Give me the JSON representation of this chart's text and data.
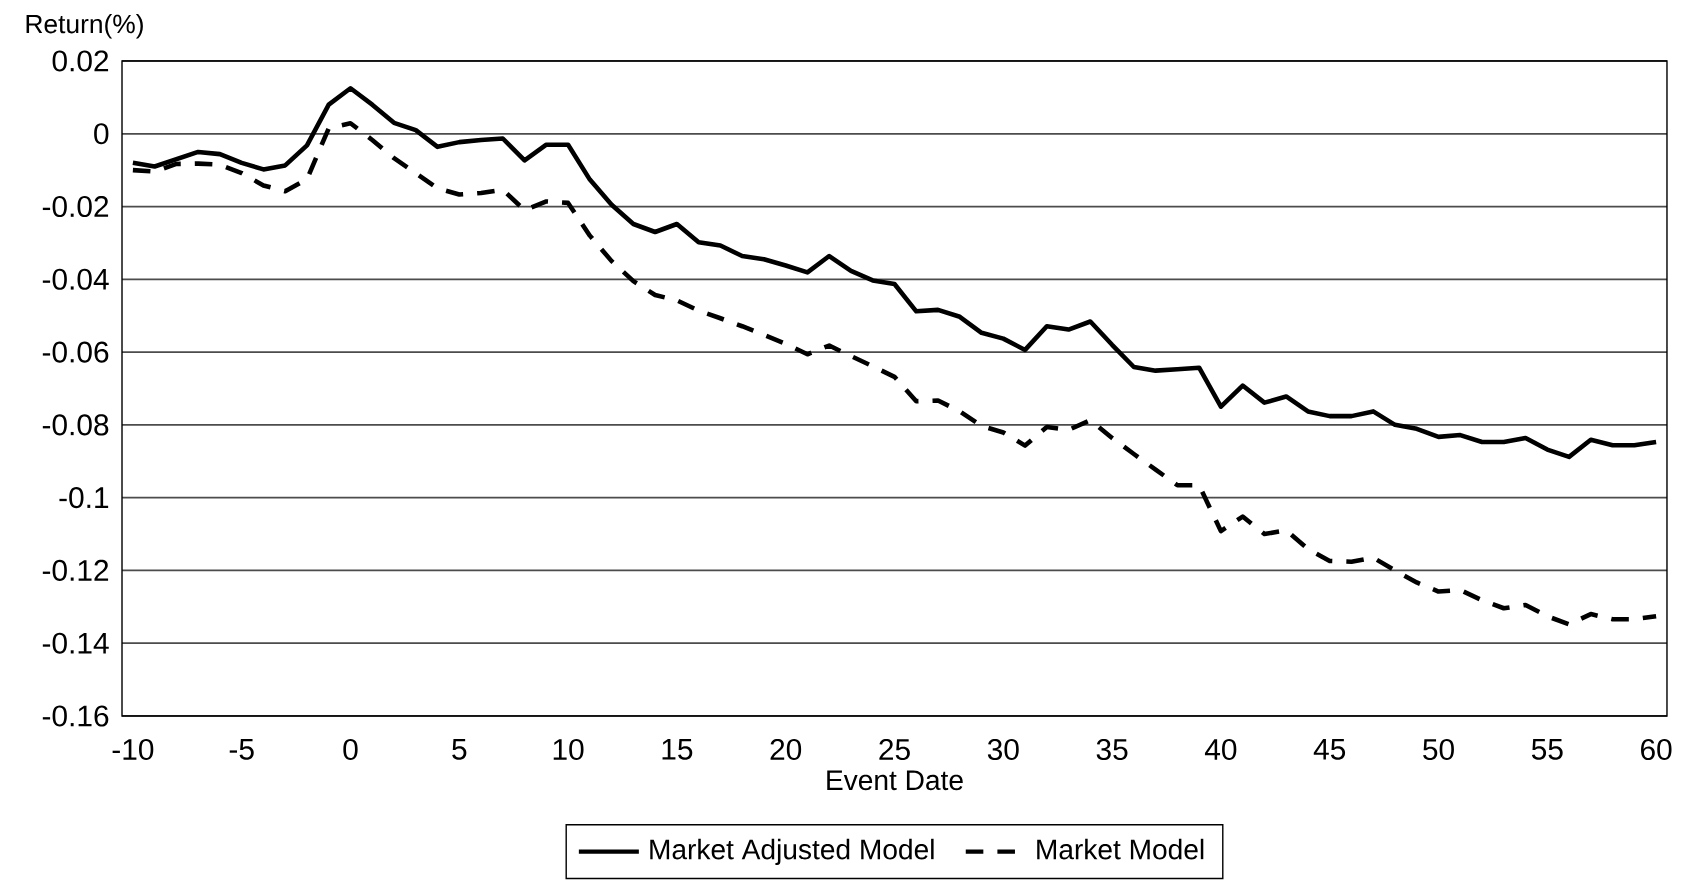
{
  "chart_data": {
    "type": "line",
    "xlabel": "Event Date",
    "ylabel": "Return(%)",
    "x": [
      -10,
      -9,
      -8,
      -7,
      -6,
      -5,
      -4,
      -3,
      -2,
      -1,
      0,
      1,
      2,
      3,
      4,
      5,
      6,
      7,
      8,
      9,
      10,
      11,
      12,
      13,
      14,
      15,
      16,
      17,
      18,
      19,
      20,
      21,
      22,
      23,
      24,
      25,
      26,
      27,
      28,
      29,
      30,
      31,
      32,
      33,
      34,
      35,
      36,
      37,
      38,
      39,
      40,
      41,
      42,
      43,
      44,
      45,
      46,
      47,
      48,
      49,
      50,
      51,
      52,
      53,
      54,
      55,
      56,
      57,
      58,
      59,
      60
    ],
    "series": [
      {
        "name": "Market Adjusted Model",
        "color": "#000000",
        "line_style": "solid",
        "values": [
          -0.008,
          -0.009,
          -0.007,
          -0.005,
          -0.0056,
          -0.008,
          -0.0098,
          -0.0087,
          -0.0032,
          0.008,
          0.0125,
          0.008,
          0.003,
          0.001,
          -0.0036,
          -0.0023,
          -0.0017,
          -0.0013,
          -0.0073,
          -0.003,
          -0.003,
          -0.0126,
          -0.0195,
          -0.0248,
          -0.027,
          -0.0248,
          -0.0298,
          -0.0307,
          -0.0336,
          -0.0345,
          -0.0362,
          -0.0381,
          -0.0336,
          -0.0377,
          -0.0403,
          -0.0413,
          -0.0488,
          -0.0484,
          -0.0503,
          -0.0547,
          -0.0563,
          -0.0594,
          -0.0529,
          -0.0538,
          -0.0516,
          -0.058,
          -0.0641,
          -0.0651,
          -0.0647,
          -0.0643,
          -0.075,
          -0.0692,
          -0.0739,
          -0.0722,
          -0.0763,
          -0.0776,
          -0.0776,
          -0.0763,
          -0.08,
          -0.0811,
          -0.0833,
          -0.0828,
          -0.0847,
          -0.0847,
          -0.0836,
          -0.0868,
          -0.0888,
          -0.0841,
          -0.0856,
          -0.0856,
          -0.0847
        ]
      },
      {
        "name": "Market Model",
        "color": "#000000",
        "line_style": "dashed",
        "values": [
          -0.01,
          -0.0104,
          -0.0083,
          -0.0082,
          -0.0085,
          -0.0108,
          -0.0142,
          -0.0158,
          -0.0125,
          0.0015,
          0.0029,
          -0.0017,
          -0.0067,
          -0.0108,
          -0.015,
          -0.0167,
          -0.0163,
          -0.0154,
          -0.021,
          -0.0186,
          -0.019,
          -0.028,
          -0.035,
          -0.0405,
          -0.0443,
          -0.0458,
          -0.0486,
          -0.0507,
          -0.0529,
          -0.0553,
          -0.0577,
          -0.0606,
          -0.0582,
          -0.0611,
          -0.0639,
          -0.0668,
          -0.0735,
          -0.0733,
          -0.0763,
          -0.0803,
          -0.0821,
          -0.0857,
          -0.0806,
          -0.0814,
          -0.0787,
          -0.0836,
          -0.088,
          -0.0923,
          -0.0966,
          -0.0966,
          -0.1092,
          -0.1052,
          -0.11,
          -0.109,
          -0.1141,
          -0.1174,
          -0.1176,
          -0.1165,
          -0.12,
          -0.1233,
          -0.1258,
          -0.1254,
          -0.1282,
          -0.1304,
          -0.1295,
          -0.1326,
          -0.1348,
          -0.132,
          -0.1334,
          -0.1334,
          -0.1326
        ]
      }
    ],
    "xlim": [
      -10.5,
      60.5
    ],
    "xticks": [
      -10,
      -5,
      0,
      5,
      10,
      15,
      20,
      25,
      30,
      35,
      40,
      45,
      50,
      55,
      60
    ],
    "ylim": [
      -0.16,
      0.02
    ],
    "yticks": [
      -0.16,
      -0.14,
      -0.12,
      -0.1,
      -0.08,
      -0.06,
      -0.04,
      -0.02,
      0,
      0.02
    ],
    "grid": "y",
    "legend": "bottom",
    "marker": "none"
  }
}
